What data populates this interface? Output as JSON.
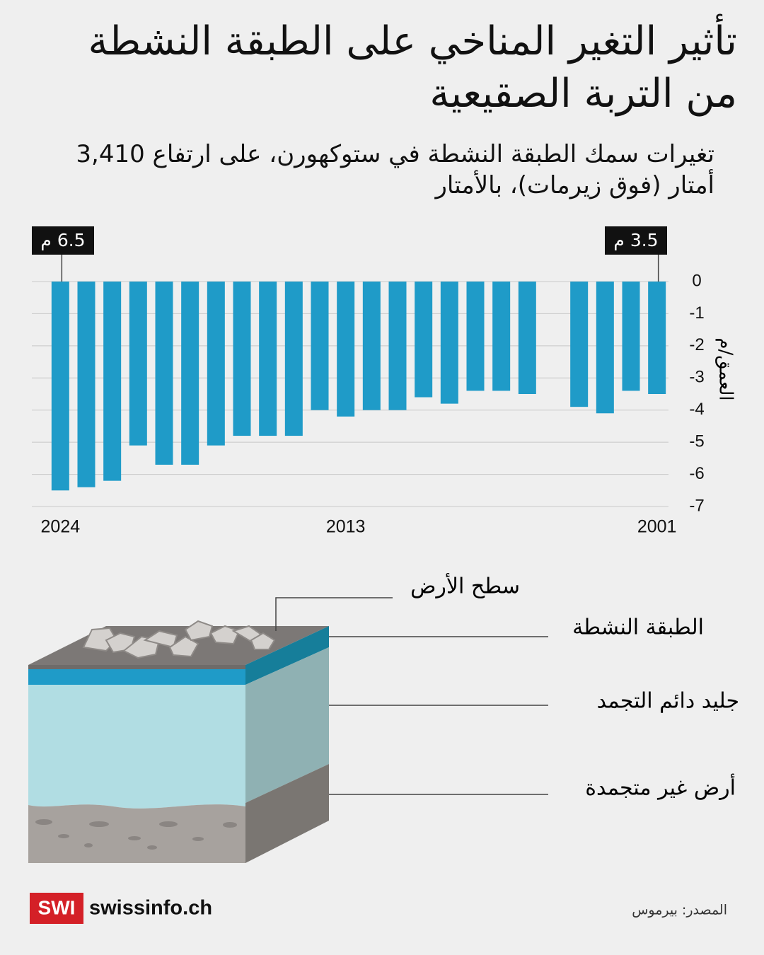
{
  "chart_data": {
    "type": "bar",
    "title": "تأثير التغير المناخي على الطبقة النشطة من التربة الصقيعية",
    "subtitle": "تغيرات سمك الطبقة النشطة في ستوكهورن، على ارتفاع 3,410 أمتار (فوق زيرمات)، بالأمتار",
    "y_label": "العمق/م",
    "categories": [
      "2024",
      null,
      null,
      null,
      null,
      null,
      null,
      null,
      null,
      null,
      null,
      "2013",
      null,
      null,
      null,
      null,
      null,
      null,
      null,
      null,
      null,
      null,
      null,
      "2001"
    ],
    "values": [
      -6.5,
      -6.4,
      -6.2,
      -5.1,
      -5.7,
      -5.7,
      -5.1,
      -4.8,
      -4.8,
      -4.8,
      -4.0,
      -4.2,
      -4.0,
      -4.0,
      -3.6,
      -3.8,
      -3.4,
      -3.4,
      -3.5,
      null,
      -3.9,
      -4.1,
      -3.4,
      -3.5
    ],
    "color": "#1f9bc8",
    "ylim": [
      -7,
      0
    ],
    "yticks": [
      0,
      -1,
      -2,
      -3,
      -4,
      -5,
      -6,
      -7
    ],
    "grid": true,
    "annotations": [
      "6.5 م",
      "3.5 م"
    ]
  },
  "diagram": {
    "labels": [
      "سطح الأرض",
      "الطبقة النشطة",
      "جليد دائم التجمد",
      "أرض غير متجمدة"
    ]
  },
  "footer": {
    "logo": "SWI",
    "brand": "swissinfo.ch",
    "source": "المصدر: بيرموس"
  }
}
